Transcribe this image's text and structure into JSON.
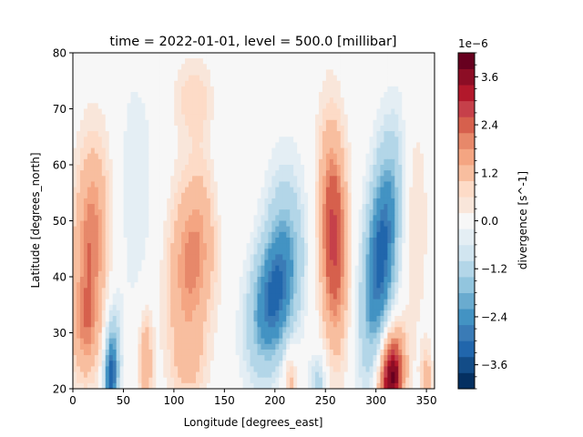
{
  "chart_data": {
    "type": "heatmap",
    "title": "time = 2022-01-01, level = 500.0 [millibar]",
    "xlabel": "Longitude [degrees_east]",
    "ylabel": "Latitude [degrees_north]",
    "xlim": [
      0,
      358
    ],
    "ylim": [
      20,
      80
    ],
    "x_ticks": [
      "0",
      "50",
      "100",
      "150",
      "200",
      "250",
      "300",
      "350"
    ],
    "y_ticks": [
      "20",
      "30",
      "40",
      "50",
      "60",
      "70",
      "80"
    ],
    "grid": false,
    "colorbar": {
      "label": "divergence [s^-1]",
      "offset_text": "1e−6",
      "cmap": "RdBu_r",
      "ticks": [
        "−3.6",
        "−2.4",
        "−1.2",
        "0.0",
        "1.2",
        "2.4",
        "3.6"
      ],
      "levels": [
        -4.2,
        -3.9,
        -3.6,
        -3.3,
        -3.0,
        -2.7,
        -2.4,
        -2.1,
        -1.8,
        -1.5,
        -1.2,
        -0.9,
        -0.6,
        -0.3,
        0.0,
        0.3,
        0.6,
        0.9,
        1.2,
        1.5,
        1.8,
        2.1,
        2.4,
        2.7,
        3.0,
        3.3,
        3.6,
        3.9,
        4.2
      ],
      "colors": [
        "#053061",
        "#134c87",
        "#2166ac",
        "#3a7bb6",
        "#4393c3",
        "#6aabcf",
        "#92c5de",
        "#b3d6e8",
        "#d1e5f0",
        "#e4eef4",
        "#f7f7f7",
        "#f9e6da",
        "#fddbc7",
        "#f8be9f",
        "#f4a582",
        "#e7886a",
        "#d6604d",
        "#c6404a",
        "#b2182b",
        "#8c0d25",
        "#67001f"
      ]
    },
    "features": [
      {
        "lon": 18,
        "lat": 46,
        "amp": 2.1,
        "slon": 13,
        "slat": 13,
        "tilt": 0.15
      },
      {
        "lon": 12,
        "lat": 30,
        "amp": 1.1,
        "slon": 10,
        "slat": 6,
        "tilt": 0.0
      },
      {
        "lon": 38,
        "lat": 22,
        "amp": -3.0,
        "slon": 5,
        "slat": 5,
        "tilt": 0.0
      },
      {
        "lon": 40,
        "lat": 30,
        "amp": -0.9,
        "slon": 6,
        "slat": 6,
        "tilt": 0.0
      },
      {
        "lon": 62,
        "lat": 55,
        "amp": -0.5,
        "slon": 16,
        "slat": 18,
        "tilt": 0.0
      },
      {
        "lon": 72,
        "lat": 25,
        "amp": 1.6,
        "slon": 5,
        "slat": 6,
        "tilt": 0.0
      },
      {
        "lon": 118,
        "lat": 43,
        "amp": 2.0,
        "slon": 17,
        "slat": 12,
        "tilt": 0.35
      },
      {
        "lon": 120,
        "lat": 72,
        "amp": 0.8,
        "slon": 14,
        "slat": 5,
        "tilt": 0.0
      },
      {
        "lon": 115,
        "lat": 24,
        "amp": 0.7,
        "slon": 12,
        "slat": 5,
        "tilt": 0.0
      },
      {
        "lon": 150,
        "lat": 60,
        "amp": -0.4,
        "slon": 10,
        "slat": 12,
        "tilt": 0.0
      },
      {
        "lon": 198,
        "lat": 36,
        "amp": -3.0,
        "slon": 16,
        "slat": 9,
        "tilt": 0.6
      },
      {
        "lon": 210,
        "lat": 50,
        "amp": -0.9,
        "slon": 14,
        "slat": 10,
        "tilt": 0.0
      },
      {
        "lon": 215,
        "lat": 22,
        "amp": 1.2,
        "slon": 5,
        "slat": 4,
        "tilt": 0.0
      },
      {
        "lon": 243,
        "lat": 21,
        "amp": -1.2,
        "slon": 6,
        "slat": 4,
        "tilt": 0.0
      },
      {
        "lon": 258,
        "lat": 47,
        "amp": 2.9,
        "slon": 10,
        "slat": 14,
        "tilt": -0.1
      },
      {
        "lon": 305,
        "lat": 44,
        "amp": -3.3,
        "slon": 12,
        "slat": 14,
        "tilt": 0.45
      },
      {
        "lon": 315,
        "lat": 22,
        "amp": 4.2,
        "slon": 9,
        "slat": 6,
        "tilt": 0.2
      },
      {
        "lon": 338,
        "lat": 50,
        "amp": 0.7,
        "slon": 9,
        "slat": 14,
        "tilt": 0.0
      },
      {
        "lon": 350,
        "lat": 22,
        "amp": 1.2,
        "slon": 4,
        "slat": 4,
        "tilt": 0.0
      }
    ]
  }
}
